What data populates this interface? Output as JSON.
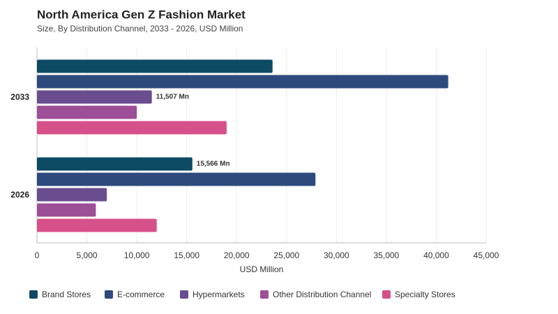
{
  "chart_data": {
    "type": "hbar",
    "title": "North America Gen Z Fashion Market",
    "subtitle": "Size, By Distribution Channel, 2033 - 2026, USD Million",
    "x_label": "USD Million",
    "categories": [
      "2033",
      "2026"
    ],
    "series": [
      {
        "name": "Brand Stores",
        "color": "#0d4a63",
        "values": [
          23600,
          15566
        ],
        "value_labels": [
          null,
          "15,566 Mn"
        ]
      },
      {
        "name": "E-commerce",
        "color": "#2e4a7d",
        "values": [
          41200,
          27900
        ]
      },
      {
        "name": "Hypermarkets",
        "color": "#6a4d8f",
        "values": [
          11507,
          7000
        ],
        "value_labels": [
          "11,507 Mn",
          null
        ]
      },
      {
        "name": "Other Distribution Channel",
        "color": "#9c4f96",
        "values": [
          10000,
          5900
        ]
      },
      {
        "name": "Specialty Stores",
        "color": "#d6508a",
        "values": [
          19000,
          12000
        ]
      }
    ],
    "xlim": [
      0,
      45000
    ],
    "xticks": [
      0,
      {
        "value": 5000,
        "label": "5,000"
      },
      {
        "value": 10000,
        "label": "10,000"
      },
      {
        "value": 15000,
        "label": "15,000"
      },
      {
        "value": 20000,
        "label": "20,000"
      },
      {
        "value": 25000,
        "label": "25,000"
      },
      {
        "value": 30000,
        "label": "30,000"
      },
      {
        "value": 35000,
        "label": "35,000"
      },
      {
        "value": 40000,
        "label": "40,000"
      },
      {
        "value": 45000,
        "label": "45,000"
      }
    ],
    "grid": true,
    "legend": "bottom"
  }
}
